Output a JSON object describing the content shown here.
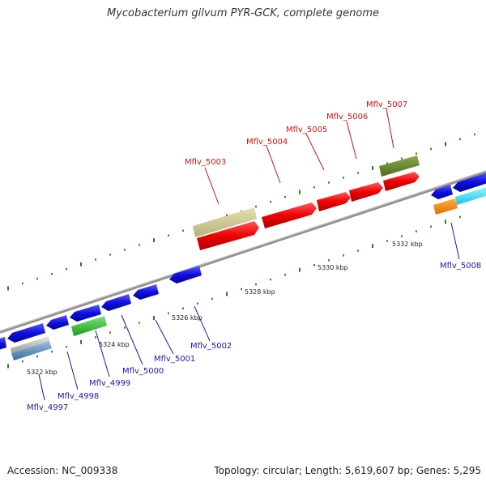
{
  "title": "Mycobacterium gilvum PYR-GCK, complete genome",
  "colors": {
    "backbone": "#8c8c8c",
    "forward_gene": "#ee0000",
    "reverse_gene": "#1010e0",
    "forward_label": "#cc1111",
    "reverse_label": "#1a1aaa",
    "tick": "#2a7a2a"
  },
  "scale_labels": [
    "5322 kbp",
    "5324 kbp",
    "5326 kbp",
    "5328 kbp",
    "5330 kbp",
    "5332 kbp"
  ],
  "forward_gene_labels": [
    "Mflv_5003",
    "Mflv_5004",
    "Mflv_5005",
    "Mflv_5006",
    "Mflv_5007"
  ],
  "reverse_gene_labels": [
    "Mflv_4997",
    "Mflv_4998",
    "Mflv_4999",
    "Mflv_5000",
    "Mflv_5001",
    "Mflv_5002",
    "Mflv_5008"
  ],
  "footer": {
    "accession": "Accession: NC_009338",
    "summary": "Topology: circular; Length: 5,619,607 bp; Genes: 5,295"
  }
}
